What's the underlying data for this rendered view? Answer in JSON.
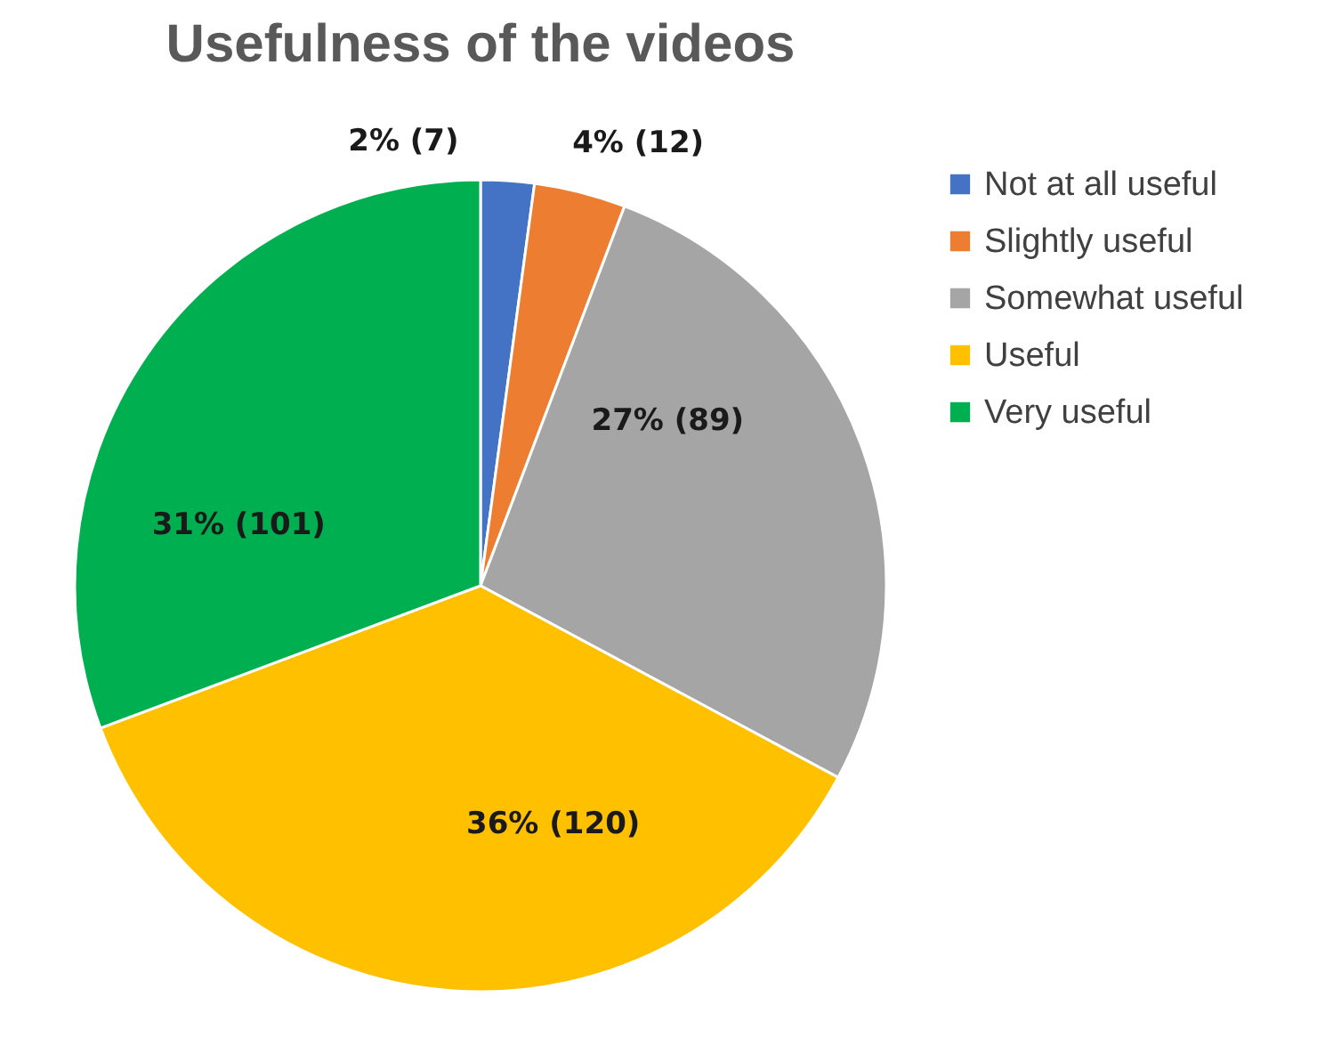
{
  "chart_data": {
    "type": "pie",
    "title": "Usefulness of the videos",
    "categories": [
      "Not at all useful",
      "Slightly useful",
      "Somewhat useful",
      "Useful",
      "Very useful"
    ],
    "values": [
      7,
      12,
      89,
      120,
      101
    ],
    "colors": [
      "#4472c4",
      "#ed7d31",
      "#a5a5a5",
      "#ffc000",
      "#00b050"
    ],
    "value_labels": [
      "2% (7)",
      "4% (12)",
      "27% (89)",
      "36% (120)",
      "31% (101)"
    ],
    "legend": "right"
  }
}
